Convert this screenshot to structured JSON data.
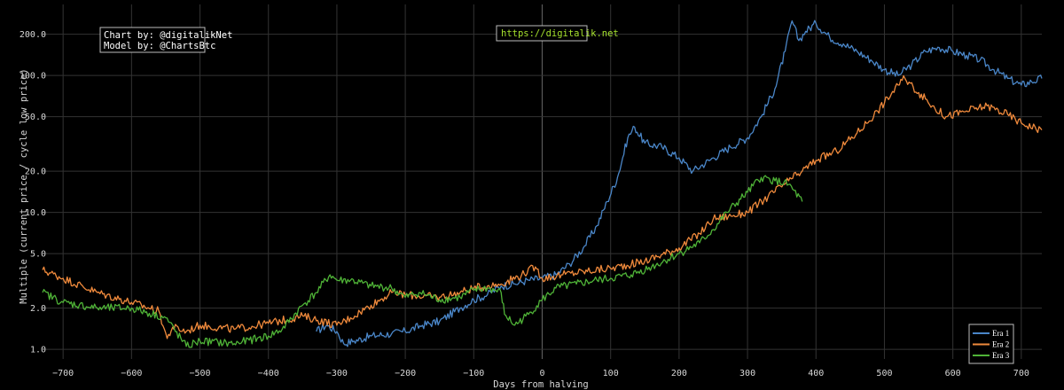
{
  "chart_data": {
    "type": "line",
    "xlabel": "Days from halving",
    "ylabel": "Multiple (current price / cycle low price)",
    "x_scale": "linear",
    "y_scale": "log",
    "xlim": [
      -730,
      730
    ],
    "ylim": [
      0.85,
      330
    ],
    "grid": true,
    "legend_position": "bottom-right",
    "x_ticks": [
      -700,
      -600,
      -500,
      -400,
      -300,
      -200,
      -100,
      0,
      100,
      200,
      300,
      400,
      500,
      600,
      700
    ],
    "y_ticks": [
      1.0,
      2.0,
      5.0,
      10.0,
      20.0,
      50.0,
      100.0,
      200.0
    ],
    "y_tick_labels": [
      "1.0",
      "2.0",
      "5.0",
      "10.0",
      "20.0",
      "50.0",
      "100.0",
      "200.0"
    ],
    "series": [
      {
        "name": "Era 1",
        "color": "#4a86c8",
        "x": [
          -330,
          -315,
          -300,
          -290,
          -275,
          -250,
          -220,
          -200,
          -175,
          -150,
          -120,
          -100,
          -80,
          -60,
          -40,
          -20,
          0,
          20,
          40,
          60,
          80,
          95,
          110,
          125,
          135,
          150,
          175,
          200,
          220,
          250,
          275,
          300,
          320,
          340,
          355,
          365,
          375,
          385,
          400,
          420,
          440,
          460,
          480,
          500,
          520,
          540,
          560,
          580,
          600,
          620,
          640,
          660,
          680,
          700,
          715,
          730
        ],
        "y": [
          1.35,
          1.5,
          1.35,
          1.1,
          1.15,
          1.25,
          1.3,
          1.35,
          1.5,
          1.6,
          2.0,
          2.3,
          2.5,
          2.9,
          3.0,
          3.2,
          3.3,
          3.5,
          4.2,
          5.5,
          8.0,
          12,
          18,
          35,
          42,
          32,
          30,
          25,
          20,
          25,
          30,
          35,
          50,
          80,
          150,
          250,
          180,
          210,
          240,
          190,
          170,
          150,
          130,
          110,
          100,
          120,
          150,
          160,
          150,
          140,
          130,
          110,
          95,
          85,
          90,
          95
        ]
      },
      {
        "name": "Era 2",
        "color": "#f08a3c",
        "x": [
          -730,
          -700,
          -650,
          -600,
          -560,
          -548,
          -540,
          -520,
          -500,
          -450,
          -400,
          -350,
          -300,
          -280,
          -250,
          -220,
          -200,
          -150,
          -120,
          -100,
          -80,
          -60,
          -30,
          -10,
          0,
          30,
          60,
          100,
          150,
          200,
          230,
          250,
          280,
          300,
          330,
          360,
          380,
          400,
          430,
          460,
          490,
          520,
          530,
          550,
          570,
          590,
          620,
          650,
          680,
          700,
          730
        ],
        "y": [
          3.8,
          3.3,
          2.6,
          2.2,
          1.9,
          1.2,
          1.45,
          1.35,
          1.5,
          1.4,
          1.55,
          1.75,
          1.5,
          1.7,
          2.1,
          2.6,
          2.5,
          2.4,
          2.6,
          2.8,
          2.9,
          3.0,
          3.5,
          4.0,
          3.3,
          3.5,
          3.7,
          3.9,
          4.4,
          5.5,
          7.0,
          9.0,
          9.5,
          10.0,
          13,
          17,
          20,
          24,
          28,
          38,
          55,
          85,
          95,
          75,
          60,
          50,
          55,
          60,
          52,
          45,
          40
        ]
      },
      {
        "name": "Era 3",
        "color": "#4fb337",
        "x": [
          -730,
          -700,
          -650,
          -600,
          -550,
          -520,
          -500,
          -450,
          -400,
          -380,
          -350,
          -330,
          -310,
          -300,
          -280,
          -250,
          -220,
          -200,
          -180,
          -150,
          -120,
          -100,
          -80,
          -60,
          -55,
          -40,
          -20,
          0,
          20,
          50,
          80,
          100,
          130,
          160,
          200,
          230,
          250,
          270,
          300,
          320,
          340,
          360,
          380
        ],
        "y": [
          2.6,
          2.2,
          2.0,
          2.0,
          1.7,
          1.05,
          1.15,
          1.1,
          1.25,
          1.4,
          2.1,
          2.6,
          3.5,
          3.2,
          3.2,
          2.9,
          2.8,
          2.4,
          2.6,
          2.3,
          2.4,
          2.7,
          2.8,
          2.6,
          1.8,
          1.5,
          1.8,
          2.3,
          2.8,
          3.0,
          3.2,
          3.3,
          3.5,
          4.0,
          5.0,
          6.0,
          7.5,
          10,
          14,
          18,
          17,
          16,
          12
        ]
      }
    ]
  },
  "annotations": {
    "credit_line_1": "Chart by: @digitalikNet",
    "credit_line_2": "Model by: @ChartsBtc",
    "url": "https://digitalik.net",
    "url_color": "#a6e22e"
  }
}
